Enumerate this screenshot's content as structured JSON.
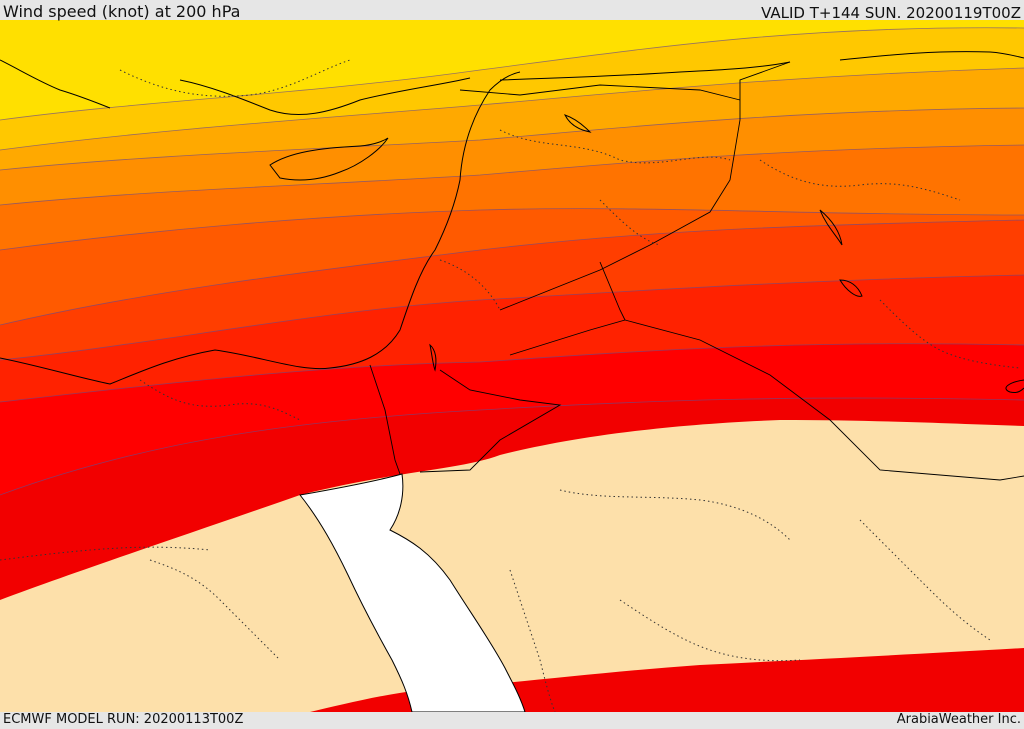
{
  "header": {
    "title": "Wind speed (knot) at 200 hPa",
    "valid": "VALID T+144 SUN. 20200119T00Z"
  },
  "footer": {
    "model_run": "ECMWF MODEL RUN: 20200113T00Z",
    "credit": "ArabiaWeather Inc."
  },
  "colors": {
    "band_1": "#ffe000",
    "band_2": "#ffc800",
    "band_3": "#ffa900",
    "band_4": "#ff8f00",
    "band_5": "#ff7300",
    "band_6": "#ff5a00",
    "band_7": "#ff3e00",
    "band_8": "#ff2200",
    "band_9": "#ff0000",
    "band_10": "#f20000",
    "calm": "#fde0aa",
    "sea": "#ffffff"
  }
}
